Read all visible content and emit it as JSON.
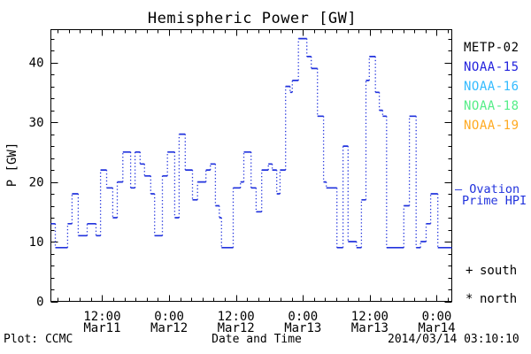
{
  "title": "Hemispheric Power [GW]",
  "axes": {
    "y_label": "P [GW]",
    "x_label": "Date and Time"
  },
  "footer": {
    "credit": "Plot: CCMC",
    "timestamp": "2014/03/14 03:10:10"
  },
  "colors": {
    "curve": "#2233dd",
    "frame": "#000000"
  },
  "legend": {
    "satellites": [
      {
        "label": "METP-02",
        "color": "#000000"
      },
      {
        "label": "NOAA-15",
        "color": "#2222dd"
      },
      {
        "label": "NOAA-16",
        "color": "#33bbff"
      },
      {
        "label": "NOAA-18",
        "color": "#55ee88"
      },
      {
        "label": "NOAA-19",
        "color": "#ffaa22"
      }
    ],
    "ovation": {
      "line1": "— Ovation",
      "line2": "Prime HPI",
      "color": "#2233dd"
    },
    "markers": [
      {
        "symbol": "+",
        "label": "south"
      },
      {
        "symbol": "*",
        "label": "north"
      }
    ]
  },
  "chart_data": {
    "type": "line",
    "step": true,
    "series_name": "Ovation Prime HPI",
    "title": "Hemispheric Power [GW]",
    "xlabel": "Date and Time",
    "ylabel": "P [GW]",
    "grid": false,
    "xlim": [
      2.8,
      74.7
    ],
    "ylim": [
      0,
      45.5
    ],
    "x_units": "hours since 2014-03-11 00:00 UT",
    "y_units": "GW",
    "x_minor_step": 2,
    "y_minor_step": 2,
    "y_major_ticks": [
      0,
      10,
      20,
      30,
      40
    ],
    "x_major_ticks": [
      {
        "hours": 12,
        "time": "12:00",
        "date": "Mar11"
      },
      {
        "hours": 24,
        "time": "0:00",
        "date": "Mar12"
      },
      {
        "hours": 36,
        "time": "12:00",
        "date": "Mar12"
      },
      {
        "hours": 48,
        "time": "0:00",
        "date": "Mar13"
      },
      {
        "hours": 60,
        "time": "12:00",
        "date": "Mar13"
      },
      {
        "hours": 72,
        "time": "0:00",
        "date": "Mar14"
      }
    ],
    "x_hours": [
      2.8,
      3.6,
      5.8,
      6.6,
      7.7,
      9.3,
      10.9,
      11.7,
      12.8,
      13.9,
      14.7,
      15.7,
      17.1,
      17.9,
      18.8,
      19.6,
      20.7,
      21.4,
      22.8,
      23.7,
      25.0,
      25.8,
      26.9,
      28.2,
      29.1,
      30.6,
      31.4,
      32.3,
      33.0,
      33.4,
      35.5,
      36.8,
      37.4,
      38.7,
      39.6,
      40.6,
      41.8,
      42.5,
      43.3,
      43.9,
      44.9,
      45.7,
      46.1,
      47.2,
      48.7,
      49.5,
      50.6,
      51.7,
      52.2,
      54.1,
      55.2,
      56.1,
      57.6,
      58.5,
      59.3,
      59.9,
      61.0,
      61.7,
      62.3,
      63.0,
      66.1,
      67.1,
      68.3,
      69.1,
      70.1,
      70.9,
      72.2
    ],
    "values": [
      13,
      9,
      13,
      18,
      11,
      13,
      11,
      22,
      19,
      14,
      20,
      25,
      19,
      25,
      23,
      21,
      18,
      11,
      21,
      25,
      14,
      28,
      22,
      17,
      20,
      22,
      23,
      16,
      14,
      9,
      19,
      20,
      25,
      19,
      15,
      22,
      23,
      22,
      18,
      22,
      36,
      35,
      37,
      44,
      41,
      39,
      31,
      20,
      19,
      9,
      26,
      10,
      9,
      17,
      37,
      41,
      35,
      32,
      31,
      9,
      16,
      31,
      9,
      10,
      13,
      18,
      9
    ]
  }
}
